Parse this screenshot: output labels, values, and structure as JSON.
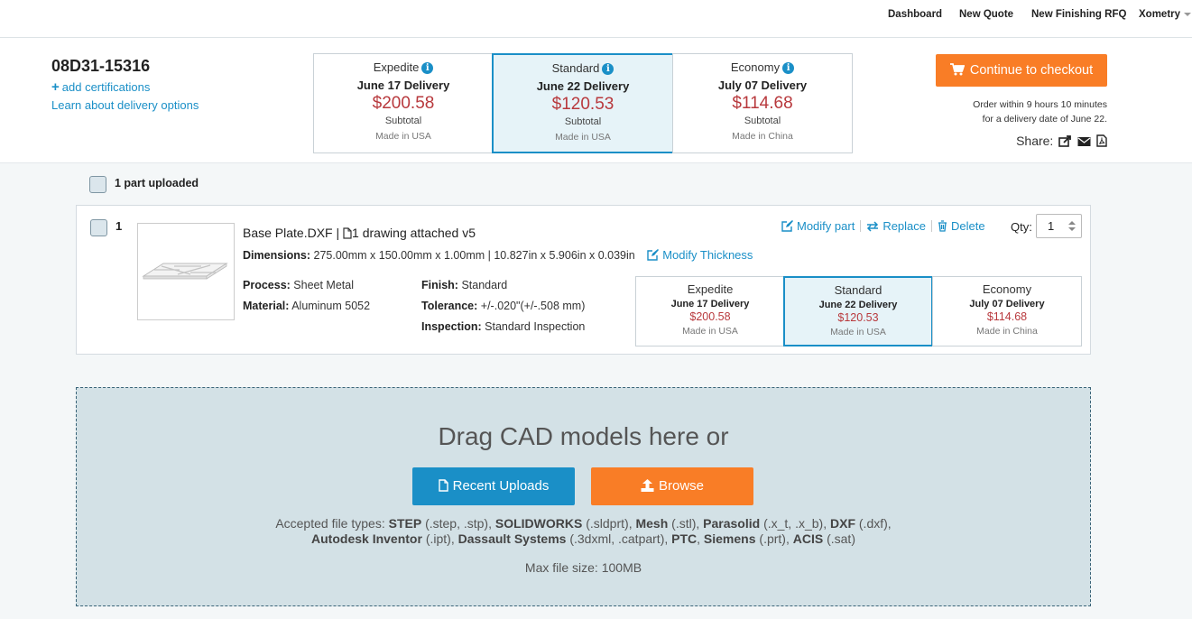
{
  "nav": {
    "items": [
      "Dashboard",
      "New Quote",
      "New Finishing RFQ"
    ],
    "account": "Xometry"
  },
  "header": {
    "quote_id": "08D31-15316",
    "add_certifications": "add certifications",
    "learn_delivery": "Learn about delivery options",
    "checkout_label": "Continue to checkout",
    "order_line1": "Order within 9 hours 10 minutes",
    "order_line2": "for a delivery date of June 22.",
    "share_label": "Share:"
  },
  "delivery_options": [
    {
      "name": "Expedite",
      "date": "June 17 Delivery",
      "price": "$200.58",
      "subtotal": "Subtotal",
      "origin": "Made in USA",
      "selected": false
    },
    {
      "name": "Standard",
      "date": "June 22 Delivery",
      "price": "$120.53",
      "subtotal": "Subtotal",
      "origin": "Made in USA",
      "selected": true
    },
    {
      "name": "Economy",
      "date": "July 07 Delivery",
      "price": "$114.68",
      "subtotal": "Subtotal",
      "origin": "Made in China",
      "selected": false
    }
  ],
  "parts_summary": {
    "label": "1 part uploaded"
  },
  "part": {
    "index": "1",
    "name": "Base Plate.DXF |",
    "drawing": "1 drawing attached v5",
    "dimensions_label": "Dimensions:",
    "dimensions_value": "275.00mm x 150.00mm x 1.00mm | 10.827in x 5.906in x 0.039in",
    "modify_thickness": "Modify Thickness",
    "process_label": "Process:",
    "process_value": "Sheet Metal",
    "material_label": "Material:",
    "material_value": "Aluminum 5052",
    "finish_label": "Finish:",
    "finish_value": "Standard",
    "tolerance_label": "Tolerance:",
    "tolerance_value": "+/-.020\"(+/-.508 mm)",
    "inspection_label": "Inspection:",
    "inspection_value": "Standard Inspection",
    "modify_part": "Modify part",
    "replace": "Replace",
    "delete": "Delete",
    "qty_label": "Qty:",
    "qty_value": "1"
  },
  "part_options": [
    {
      "name": "Expedite",
      "date": "June 17 Delivery",
      "price": "$200.58",
      "origin": "Made in USA",
      "selected": false
    },
    {
      "name": "Standard",
      "date": "June 22 Delivery",
      "price": "$120.53",
      "origin": "Made in USA",
      "selected": true
    },
    {
      "name": "Economy",
      "date": "July 07 Delivery",
      "price": "$114.68",
      "origin": "Made in China",
      "selected": false
    }
  ],
  "upload": {
    "title": "Drag CAD models here or",
    "recent_label": "Recent Uploads",
    "browse_label": "Browse",
    "accepted_prefix": "Accepted file types:",
    "formats": [
      {
        "name": "STEP",
        "ext": "(.step, .stp)"
      },
      {
        "name": "SOLIDWORKS",
        "ext": "(.sldprt)"
      },
      {
        "name": "Mesh",
        "ext": "(.stl)"
      },
      {
        "name": "Parasolid",
        "ext": "(.x_t, .x_b)"
      },
      {
        "name": "DXF",
        "ext": "(.dxf)"
      },
      {
        "name": "Autodesk Inventor",
        "ext": "(.ipt)"
      },
      {
        "name": "Dassault Systems",
        "ext": "(.3dxml, .catpart)"
      },
      {
        "name": "PTC",
        "ext": ""
      },
      {
        "name": "Siemens",
        "ext": "(.prt)"
      },
      {
        "name": "ACIS",
        "ext": "(.sat)"
      }
    ],
    "max_size": "Max file size: 100MB"
  },
  "colors": {
    "accent_blue": "#1a8fc7",
    "accent_orange": "#f97d26",
    "price_red": "#b8393d",
    "dropzone_bg": "#d3e1e6"
  }
}
